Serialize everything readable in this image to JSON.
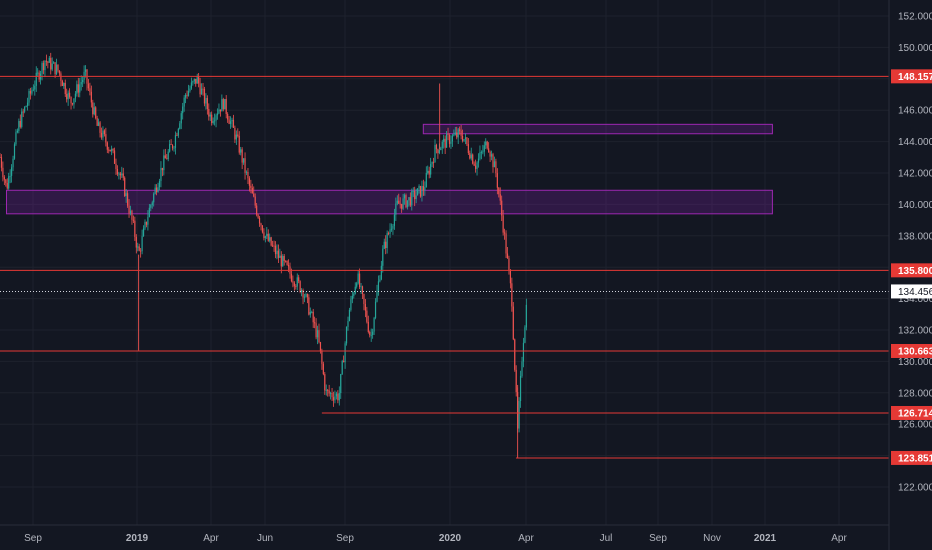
{
  "chart_data": {
    "type": "candlestick",
    "ylim": [
      121.0,
      153.0
    ],
    "y_ticks": [
      "122.000",
      "124.000",
      "126.000",
      "128.000",
      "130.000",
      "132.000",
      "134.000",
      "136.000",
      "138.000",
      "140.000",
      "142.000",
      "144.000",
      "146.000",
      "148.000",
      "150.000",
      "152.000"
    ],
    "x_ticks": [
      "Sep",
      "2019",
      "Apr",
      "Jun",
      "Sep",
      "2020",
      "Apr",
      "Jul",
      "Sep",
      "Nov",
      "2021",
      "Apr"
    ],
    "x_tick_bold": [
      false,
      true,
      false,
      false,
      false,
      true,
      false,
      false,
      false,
      false,
      true,
      false
    ],
    "horizontal_levels": [
      {
        "label": "148.157",
        "value": 148.157,
        "span": "full"
      },
      {
        "label": "135.800",
        "value": 135.8,
        "span": "full"
      },
      {
        "label": "130.663",
        "value": 130.663,
        "span": "full"
      },
      {
        "label": "126.714",
        "value": 126.714,
        "span": "from-Aug-2019-low"
      },
      {
        "label": "123.851",
        "value": 123.851,
        "span": "from-Mar-2020-low"
      }
    ],
    "current_price": {
      "label": "134.456",
      "value": 134.456
    },
    "zones": [
      {
        "name": "",
        "y_from": 139.4,
        "y_to": 140.9,
        "time_from": "2018-08",
        "time_to": "2021-01"
      },
      {
        "name": "",
        "y_from": 144.5,
        "y_to": 145.1,
        "time_from": "2019-12",
        "time_to": "2021-01"
      }
    ],
    "price_path": [
      [
        "2018-07",
        147.0
      ],
      [
        "2018-07-15",
        145.5
      ],
      [
        "2018-08-01",
        141.0
      ],
      [
        "2018-08-15",
        145.0
      ],
      [
        "2018-09-01",
        147.5
      ],
      [
        "2018-09-15",
        149.2
      ],
      [
        "2018-10-01",
        148.5
      ],
      [
        "2018-10-15",
        146.5
      ],
      [
        "2018-11-01",
        148.3
      ],
      [
        "2018-11-15",
        145.0
      ],
      [
        "2018-12-01",
        143.5
      ],
      [
        "2018-12-15",
        141.5
      ],
      [
        "2018-12-28",
        138.5
      ],
      [
        "2019-01-03",
        136.8
      ],
      [
        "2019-01-15",
        139.5
      ],
      [
        "2019-02-01",
        142.5
      ],
      [
        "2019-02-15",
        144.0
      ],
      [
        "2019-03-01",
        147.0
      ],
      [
        "2019-03-15",
        148.0
      ],
      [
        "2019-04-01",
        145.5
      ],
      [
        "2019-04-15",
        146.5
      ],
      [
        "2019-05-01",
        144.0
      ],
      [
        "2019-05-15",
        141.0
      ],
      [
        "2019-06-01",
        138.0
      ],
      [
        "2019-06-15",
        136.8
      ],
      [
        "2019-07-01",
        135.5
      ],
      [
        "2019-07-15",
        134.5
      ],
      [
        "2019-08-01",
        131.5
      ],
      [
        "2019-08-10",
        128.0
      ],
      [
        "2019-08-25",
        127.8
      ],
      [
        "2019-09-05",
        133.0
      ],
      [
        "2019-09-15",
        135.5
      ],
      [
        "2019-10-01",
        131.5
      ],
      [
        "2019-10-15",
        137.0
      ],
      [
        "2019-11-01",
        140.0
      ],
      [
        "2019-11-15",
        140.3
      ],
      [
        "2019-12-01",
        141.0
      ],
      [
        "2019-12-15",
        143.5
      ],
      [
        "2020-01-01",
        144.2
      ],
      [
        "2020-01-15",
        144.5
      ],
      [
        "2020-02-01",
        142.5
      ],
      [
        "2020-02-15",
        144.0
      ],
      [
        "2020-02-25",
        142.0
      ],
      [
        "2020-03-05",
        138.5
      ],
      [
        "2020-03-15",
        134.0
      ],
      [
        "2020-03-22",
        125.5
      ],
      [
        "2020-03-28",
        131.0
      ],
      [
        "2020-04-03",
        134.456
      ]
    ]
  }
}
